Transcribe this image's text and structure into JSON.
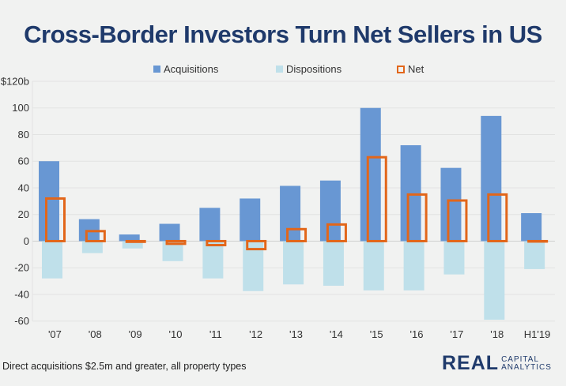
{
  "chart_data": {
    "type": "bar",
    "title": "Cross-Border Investors Turn Net Sellers in US",
    "categories": [
      "'07",
      "'08",
      "'09",
      "'10",
      "'11",
      "'12",
      "'13",
      "'14",
      "'15",
      "'16",
      "'17",
      "'18",
      "H1'19"
    ],
    "series": [
      {
        "name": "Acquisitions",
        "color": "#6897d3",
        "style": "filled",
        "values": [
          60,
          16.5,
          5,
          13,
          25,
          32,
          41.5,
          45.5,
          100,
          72,
          55,
          94,
          21
        ]
      },
      {
        "name": "Dispositions",
        "color": "#bfe0ea",
        "style": "filled",
        "values": [
          -28,
          -9,
          -5.5,
          -15,
          -28,
          -37.5,
          -32.5,
          -33.5,
          -37,
          -37,
          -25,
          -59,
          -21
        ]
      },
      {
        "name": "Net",
        "color": "#e2661a",
        "style": "outline",
        "values": [
          32,
          7.5,
          -0.5,
          -2,
          -3,
          -6,
          9,
          12.5,
          63,
          35,
          30.5,
          35,
          0
        ]
      }
    ],
    "yticks": [
      "$120b",
      "100",
      "80",
      "60",
      "40",
      "20",
      "0",
      "-20",
      "-40",
      "-60"
    ],
    "ylim": [
      -60,
      120
    ],
    "grid": true,
    "legend": "top"
  },
  "footnote": "Direct acquisitions $2.5m and greater, all property types",
  "logo": {
    "main": "REAL",
    "line1": "CAPITAL",
    "line2": "ANALYTICS"
  }
}
